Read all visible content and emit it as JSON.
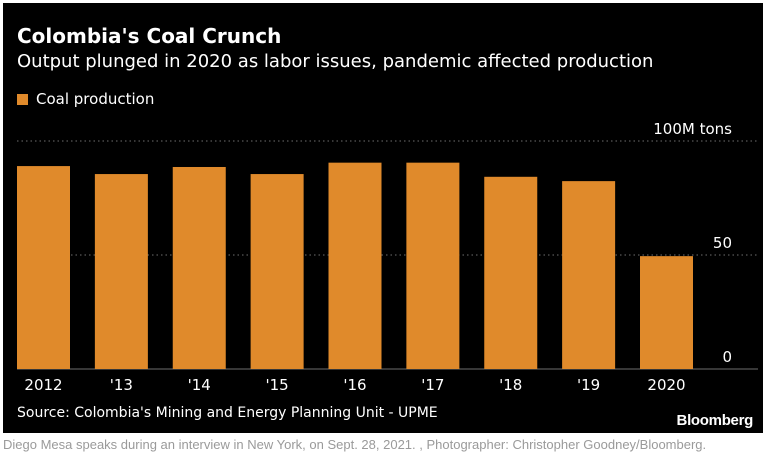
{
  "chart_data": {
    "type": "bar",
    "title": "Colombia's Coal Crunch",
    "subtitle": "Output plunged in 2020 as labor issues, pandemic affected production",
    "categories": [
      "2012",
      "'13",
      "'14",
      "'15",
      "'16",
      "'17",
      "'18",
      "'19",
      "2020"
    ],
    "series": [
      {
        "name": "Coal production",
        "values": [
          89,
          85.5,
          88.6,
          85.5,
          90.5,
          90.5,
          84.3,
          82.4,
          49.5
        ]
      }
    ],
    "y_unit_label": "100M tons",
    "y_ticks": [
      {
        "value": 100,
        "label": "100M tons"
      },
      {
        "value": 50,
        "label": "50"
      },
      {
        "value": 0,
        "label": "0"
      }
    ],
    "ylim": [
      0,
      100
    ],
    "grid": true,
    "legend_position": "top-left",
    "source": "Source: Colombia's Mining and Energy Planning Unit - UPME",
    "colors": {
      "bar": "#e08a2b",
      "background": "#000000",
      "text": "#ffffff",
      "grid": "#6e6e6e"
    }
  },
  "branding": {
    "logo_text": "Bloomberg"
  },
  "caption": "Diego Mesa speaks during an interview in New York, on Sept. 28, 2021. , Photographer: Christopher Goodney/Bloomberg."
}
